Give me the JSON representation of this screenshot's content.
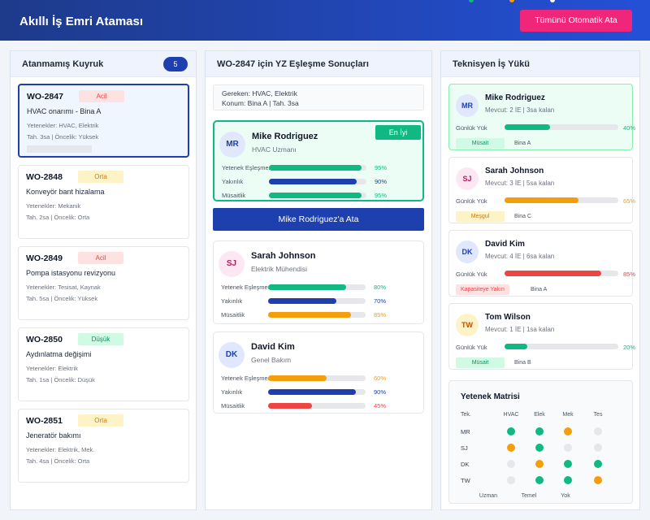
{
  "header": {
    "title": "Akıllı İş Emri Ataması",
    "button": "Tümünü Otomatik Ata"
  },
  "queue": {
    "title": "Atanmamış Kuyruk",
    "count": 5,
    "orders": [
      {
        "id": "WO-2847",
        "priority": "Acil",
        "priority_bg": "#fee2e2",
        "priority_fg": "#ef4444",
        "description": "HVAC onarımı - Bina A",
        "skills": "Yetenekler: HVAC, Elektrik",
        "meta": "Tah. 3sa | Öncelik: Yüksek",
        "selected": true
      },
      {
        "id": "WO-2848",
        "priority": "Orta",
        "priority_bg": "#fef3c7",
        "priority_fg": "#d97706",
        "description": "Konveyör bant hizalama",
        "skills": "Yetenekler: Mekanik",
        "meta": "Tah. 2sa | Öncelik: Orta",
        "selected": false
      },
      {
        "id": "WO-2849",
        "priority": "Acil",
        "priority_bg": "#fee2e2",
        "priority_fg": "#ef4444",
        "description": "Pompa istasyonu revizyonu",
        "skills": "Yetenekler: Tesisat, Kaynak",
        "meta": "Tah. 5sa | Öncelik: Yüksek",
        "selected": false
      },
      {
        "id": "WO-2850",
        "priority": "Düşük",
        "priority_bg": "#d1fae5",
        "priority_fg": "#059669",
        "description": "Aydınlatma değişimi",
        "skills": "Yetenekler: Elektrik",
        "meta": "Tah. 1sa | Öncelik: Düşük",
        "selected": false
      },
      {
        "id": "WO-2851",
        "priority": "Orta",
        "priority_bg": "#fef3c7",
        "priority_fg": "#d97706",
        "description": "Jeneratör bakımı",
        "skills": "Yetenekler: Elektrik, Mek.",
        "meta": "Tah. 4sa | Öncelik: Orta",
        "selected": false
      }
    ]
  },
  "matches": {
    "title": "WO-2847 için YZ Eşleşme Sonuçları",
    "requirements": [
      "Gereken: HVAC, Elektrik",
      "Konum: Bina A | Tah. 3sa"
    ],
    "best_badge": "En İyi",
    "assign_button": "Mike Rodriguez'a Ata",
    "candidates": [
      {
        "initials": "MR",
        "avatar_bg": "#e0e7ff",
        "avatar_fg": "#1e40af",
        "name": "Mike Rodriguez",
        "role": "HVAC Uzmanı",
        "best": true,
        "metrics": [
          {
            "label": "Yetenek Eşleşmesi",
            "score": {
              "value": 95,
              "label": "95%"
            },
            "color": "#10b981"
          },
          {
            "label": "Yakınlık",
            "score": {
              "value": 90,
              "label": "90%"
            },
            "color": "#1e40af"
          },
          {
            "label": "Müsaitlik",
            "score": {
              "value": 95,
              "label": "95%"
            },
            "color": "#10b981"
          }
        ]
      },
      {
        "initials": "SJ",
        "avatar_bg": "#fce7f3",
        "avatar_fg": "#be185d",
        "name": "Sarah Johnson",
        "role": "Elektrik Mühendisi",
        "best": false,
        "metrics": [
          {
            "label": "Yetenek Eşleşmesi",
            "score": {
              "value": 80,
              "label": "80%"
            },
            "color": "#10b981"
          },
          {
            "label": "Yakınlık",
            "score": {
              "value": 70,
              "label": "70%"
            },
            "color": "#1e40af"
          },
          {
            "label": "Müsaitlik",
            "score": {
              "value": 85,
              "label": "85%"
            },
            "color": "#f59e0b"
          }
        ]
      },
      {
        "initials": "DK",
        "avatar_bg": "#e0e7ff",
        "avatar_fg": "#1e40af",
        "name": "David Kim",
        "role": "Genel Bakım",
        "best": false,
        "metrics": [
          {
            "label": "Yetenek Eşleşmesi",
            "score": {
              "value": 60,
              "label": "60%"
            },
            "color": "#f59e0b"
          },
          {
            "label": "Yakınlık",
            "score": {
              "value": 90,
              "label": "90%"
            },
            "color": "#1e40af"
          },
          {
            "label": "Müsaitlik",
            "score": {
              "value": 45,
              "label": "45%"
            },
            "color": "#ef4444"
          }
        ]
      }
    ]
  },
  "workload": {
    "title": "Teknisyen İş Yükü",
    "load_label": "Günlük Yük",
    "technicians": [
      {
        "initials": "MR",
        "avatar_bg": "#e0e7ff",
        "avatar_fg": "#1e40af",
        "name": "Mike Rodriguez",
        "current": "Mevcut: 2 İE | 3sa kalan",
        "load": {
          "value": 40,
          "label": "40%"
        },
        "color": "#10b981",
        "status": "Müsait",
        "status_bg": "#d1fae5",
        "status_fg": "#059669",
        "location": "Bina A",
        "highlight": true
      },
      {
        "initials": "SJ",
        "avatar_bg": "#fce7f3",
        "avatar_fg": "#be185d",
        "name": "Sarah Johnson",
        "current": "Mevcut: 3 İE | 5sa kalan",
        "load": {
          "value": 65,
          "label": "65%"
        },
        "color": "#f59e0b",
        "status": "Meşgul",
        "status_bg": "#fef3c7",
        "status_fg": "#d97706",
        "location": "Bina C",
        "highlight": false
      },
      {
        "initials": "DK",
        "avatar_bg": "#e0e7ff",
        "avatar_fg": "#1e40af",
        "name": "David Kim",
        "current": "Mevcut: 4 İE | 6sa kalan",
        "load": {
          "value": 85,
          "label": "85%"
        },
        "color": "#ef4444",
        "status": "Kapasiteye Yakın",
        "status_bg": "#fee2e2",
        "status_fg": "#ef4444",
        "location": "Bina A",
        "highlight": false
      },
      {
        "initials": "TW",
        "avatar_bg": "#fef3c7",
        "avatar_fg": "#b45309",
        "name": "Tom Wilson",
        "current": "Mevcut: 1 İE | 1sa kalan",
        "load": {
          "value": 20,
          "label": "20%"
        },
        "color": "#10b981",
        "status": "Müsait",
        "status_bg": "#d1fae5",
        "status_fg": "#059669",
        "location": "Bina B",
        "highlight": false
      }
    ]
  },
  "matrix": {
    "title": "Yetenek Matrisi",
    "corner": "Tek.",
    "skills": [
      "HVAC",
      "Elek",
      "Mek",
      "Tes"
    ],
    "rows": [
      {
        "tech": "MR",
        "levels": [
          0,
          0,
          1,
          2
        ]
      },
      {
        "tech": "SJ",
        "levels": [
          1,
          0,
          2,
          2
        ]
      },
      {
        "tech": "DK",
        "levels": [
          2,
          1,
          0,
          0
        ]
      },
      {
        "tech": "TW",
        "levels": [
          2,
          0,
          0,
          1
        ]
      }
    ],
    "legend": [
      {
        "label": "Uzman",
        "color": "#10b981"
      },
      {
        "label": "Temel",
        "color": "#f59e0b"
      },
      {
        "label": "Yok",
        "color": "#e5e7eb"
      }
    ]
  }
}
